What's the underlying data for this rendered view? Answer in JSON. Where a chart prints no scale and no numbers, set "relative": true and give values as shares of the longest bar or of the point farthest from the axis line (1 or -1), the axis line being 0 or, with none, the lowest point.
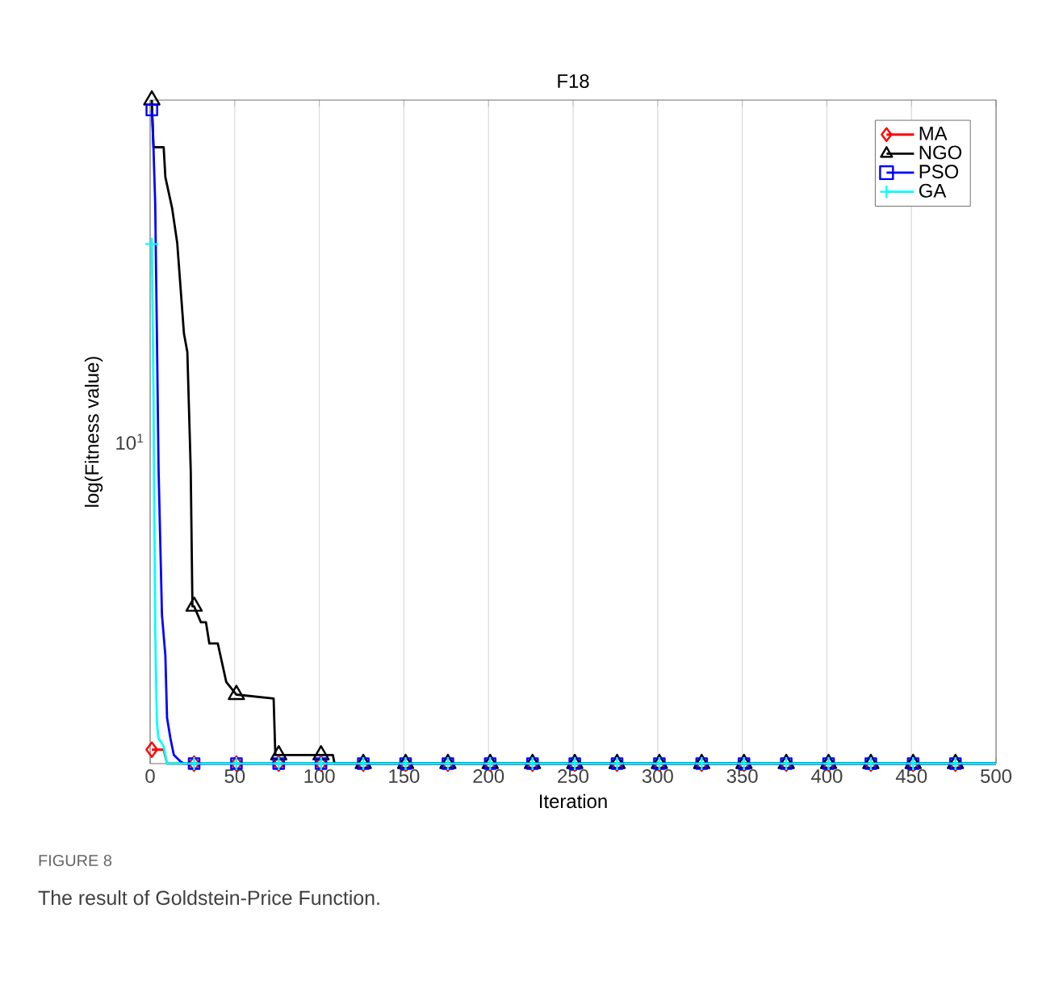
{
  "chart_data": {
    "type": "line",
    "title": "F18",
    "xlabel": "Iteration",
    "ylabel": "log(Fitness value)",
    "annotations": [
      "FIGURE 8",
      "The result of Goldstein-Price Function.",
      "10$^{1}$"
    ],
    "xlim": [
      0,
      500
    ],
    "xticks": [
      0,
      50,
      100,
      150,
      200,
      250,
      300,
      350,
      400,
      450,
      500
    ],
    "relative": true,
    "grid": "x",
    "legend": "top right",
    "line_style": "solid",
    "series": [
      {
        "name": "MA",
        "color": "#ff0000",
        "marker": "diamond",
        "x": [
          1,
          8,
          10,
          26,
          51,
          76,
          101,
          126,
          151,
          176,
          201,
          226,
          251,
          276,
          301,
          326,
          351,
          376,
          401,
          426,
          451,
          476,
          500
        ],
        "values": [
          0.021,
          0.021,
          0,
          0,
          0,
          0,
          0,
          0,
          0,
          0,
          0,
          0,
          0,
          0,
          0,
          0,
          0,
          0,
          0,
          0,
          0,
          0,
          0
        ]
      },
      {
        "name": "NGO",
        "color": "#000000",
        "marker": "triangle",
        "x": [
          1,
          2,
          8,
          9,
          13,
          16,
          20,
          22,
          24,
          25,
          26,
          30,
          33,
          35,
          40,
          45,
          51,
          73,
          74,
          76,
          101,
          108,
          109,
          126,
          151,
          176,
          201,
          226,
          251,
          276,
          301,
          326,
          351,
          376,
          401,
          426,
          451,
          476,
          500
        ],
        "values": [
          1,
          0.929,
          0.929,
          0.884,
          0.837,
          0.785,
          0.648,
          0.62,
          0.442,
          0.237,
          0.237,
          0.213,
          0.213,
          0.181,
          0.181,
          0.123,
          0.104,
          0.098,
          0.013,
          0.013,
          0.013,
          0.013,
          0,
          0,
          0,
          0,
          0,
          0,
          0,
          0,
          0,
          0,
          0,
          0,
          0,
          0,
          0,
          0,
          0
        ]
      },
      {
        "name": "PSO",
        "color": "#0000ff",
        "marker": "square",
        "x": [
          1,
          2,
          3,
          4,
          5,
          7,
          9,
          10,
          12,
          14,
          18,
          20,
          26,
          51,
          76,
          101,
          126,
          151,
          176,
          201,
          226,
          251,
          276,
          301,
          326,
          351,
          376,
          401,
          426,
          451,
          476,
          500
        ],
        "values": [
          0.985,
          0.927,
          0.844,
          0.648,
          0.442,
          0.224,
          0.163,
          0.069,
          0.038,
          0.013,
          0.003,
          0,
          0,
          0,
          0,
          0,
          0,
          0,
          0,
          0,
          0,
          0,
          0,
          0,
          0,
          0,
          0,
          0,
          0,
          0,
          0,
          0
        ]
      },
      {
        "name": "GA",
        "color": "#00ffff",
        "marker": "cross",
        "x": [
          1,
          2,
          3,
          4,
          5,
          8,
          10,
          26,
          51,
          76,
          101,
          126,
          151,
          176,
          201,
          226,
          251,
          276,
          301,
          326,
          351,
          376,
          401,
          426,
          451,
          476,
          500
        ],
        "values": [
          0.783,
          0.558,
          0.206,
          0.062,
          0.038,
          0.026,
          0,
          0,
          0,
          0,
          0,
          0,
          0,
          0,
          0,
          0,
          0,
          0,
          0,
          0,
          0,
          0,
          0,
          0,
          0,
          0,
          0
        ]
      }
    ]
  }
}
